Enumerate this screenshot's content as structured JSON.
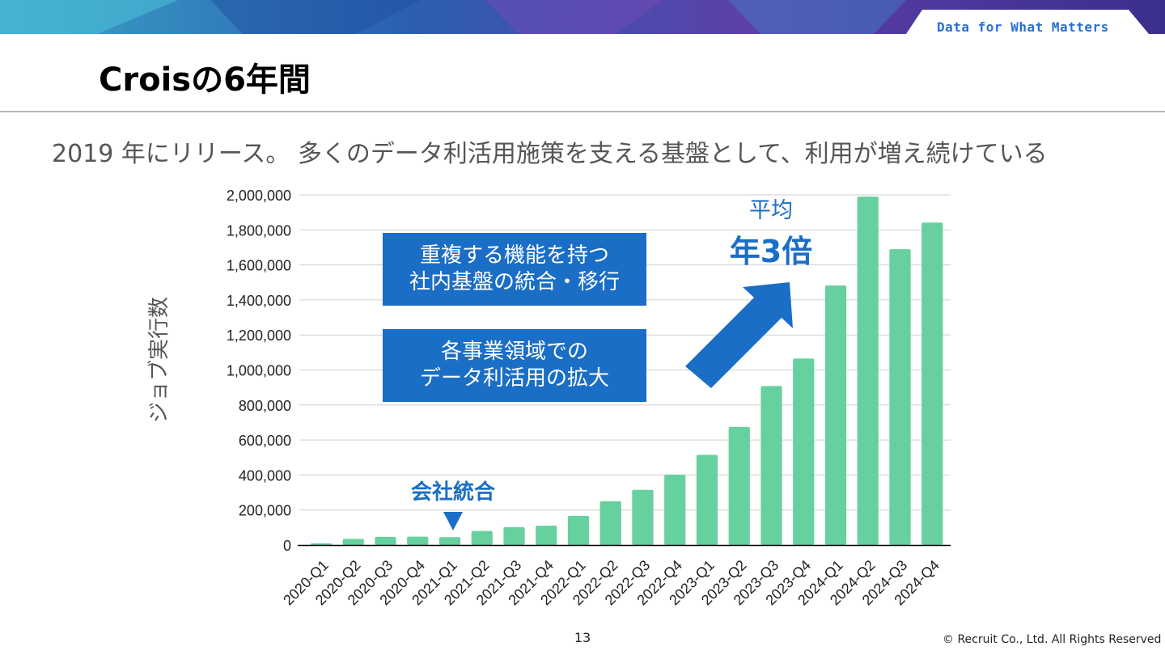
{
  "header": {
    "tagline": "Data for What Matters",
    "title": "Croisの6年間"
  },
  "subtitle": "2019 年にリリース。 多くのデータ利活用施策を支える基盤として、利用が増え続けている",
  "callouts": {
    "consolidation_line1": "重複する機能を持つ",
    "consolidation_line2": "社内基盤の統合・移行",
    "expansion_line1": "各事業領域での",
    "expansion_line2": "データ利活用の拡大",
    "average_label": "平均",
    "average_value": "年3倍",
    "merger_label": "会社統合"
  },
  "footer": {
    "page_number": "13",
    "copyright": "© Recruit Co., Ltd. All Rights Reserved"
  },
  "colors": {
    "bar": "#66d19e",
    "accent": "#1a6ec6",
    "grid": "#cfcfcf",
    "axis": "#000000"
  },
  "chart_data": {
    "type": "bar",
    "title": "",
    "xlabel": "",
    "ylabel": "ジョブ実行数",
    "categories": [
      "2020-Q1",
      "2020-Q2",
      "2020-Q3",
      "2020-Q4",
      "2021-Q1",
      "2021-Q2",
      "2021-Q3",
      "2021-Q4",
      "2022-Q1",
      "2022-Q2",
      "2022-Q3",
      "2022-Q4",
      "2023-Q1",
      "2023-Q2",
      "2023-Q3",
      "2023-Q4",
      "2024-Q1",
      "2024-Q2",
      "2024-Q3",
      "2024-Q4"
    ],
    "values": [
      10000,
      35000,
      47000,
      48000,
      45000,
      80000,
      102000,
      110000,
      167000,
      250000,
      315000,
      402000,
      515000,
      675000,
      908000,
      1065000,
      1482000,
      1990000,
      1690000,
      1842000
    ],
    "ylim": [
      0,
      2000000
    ],
    "yticks": [
      0,
      200000,
      400000,
      600000,
      800000,
      1000000,
      1200000,
      1400000,
      1600000,
      1800000,
      2000000
    ],
    "ytick_labels": [
      "0",
      "200,000",
      "400,000",
      "600,000",
      "800,000",
      "1,000,000",
      "1,200,000",
      "1,400,000",
      "1,600,000",
      "1,800,000",
      "2,000,000"
    ],
    "grid": true,
    "legend": "none"
  }
}
